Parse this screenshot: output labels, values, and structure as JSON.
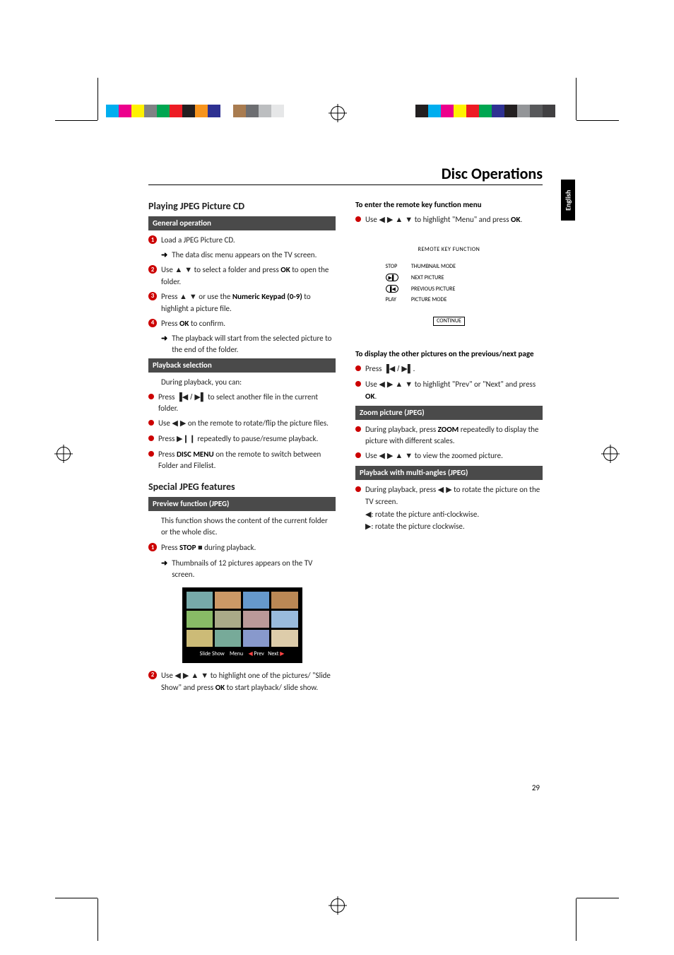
{
  "page_title": "Disc Operations",
  "side_tab": "English",
  "page_number": "29",
  "colorbar_left": [
    "#00aeef",
    "#ec008c",
    "#fff200",
    "#808285",
    "#00a651",
    "#ed1c24",
    "#231f20",
    "#f7941d",
    "#2e3192",
    "#ffffff",
    "#a97c50",
    "#6d6e71",
    "#bcbec0",
    "#e6e7e8"
  ],
  "colorbar_right": [
    "#231f20",
    "#00aeef",
    "#ec008c",
    "#fff200",
    "#ed1c24",
    "#00a651",
    "#2e3192",
    "#231f20",
    "#939598",
    "#58595b",
    "#414042",
    "#ffffff"
  ],
  "left": {
    "h_playing": "Playing JPEG Picture CD",
    "bar_general": "General operation",
    "s1": "Load a JPEG Picture CD.",
    "s1_sub": "The data disc menu appears on the TV screen.",
    "s2_a": "Use ",
    "s2_b": " to select a folder and press ",
    "s2_c": " to open the folder.",
    "s3_a": "Press ",
    "s3_b": " or use the ",
    "s3_c": "Numeric Keypad (0-9)",
    "s3_d": " to highlight a picture file.",
    "s4_a": "Press ",
    "s4_b": " to confirm.",
    "s4_sub": "The playback will start from the selected picture to the end of the folder.",
    "bar_playback": "Playback selection",
    "pb_intro": "During playback, you can:",
    "pb1_a": "Press  ",
    "pb1_b": " to select another file in the current folder.",
    "pb2_a": "Use ",
    "pb2_b": " on the remote to rotate/flip the picture files.",
    "pb3_a": "Press  ",
    "pb3_b": " repeatedly to pause/resume playback.",
    "pb4_a": "Press ",
    "pb4_b": "DISC MENU",
    "pb4_c": " on the remote to switch between Folder and Filelist.",
    "h_special": "Special JPEG features",
    "bar_preview": "Preview function (JPEG)",
    "prev_intro": "This function shows the content of the current folder or the whole disc.",
    "ps1_a": "Press ",
    "ps1_b": "STOP",
    "ps1_c": " during playback.",
    "ps1_sub": "Thumbnails of 12 pictures appears on the TV screen.",
    "ps2_a": "Use ",
    "ps2_b": " to highlight one of the pictures/ \"Slide Show\" and press ",
    "ps2_c": " to start playback/ slide show.",
    "thumb_caption_a": "Slide Show",
    "thumb_caption_b": "Menu",
    "thumb_caption_c": "Prev",
    "thumb_caption_d": "Next",
    "thumb_colors": [
      "#7aa",
      "#c96",
      "#69c",
      "#b85",
      "#8b6",
      "#aa8",
      "#b99",
      "#9bd",
      "#cb7",
      "#7a9",
      "#89c",
      "#dca"
    ]
  },
  "right": {
    "h_remote": "To enter the remote key function menu",
    "r1_a": "Use ",
    "r1_b": " to highlight \"Menu\" and press ",
    "r1_c": ".",
    "panel_title": "REMOTE KEY FUNCTION",
    "panel_rows": [
      [
        "STOP",
        "THUMBNAIL MODE"
      ],
      [
        "__next",
        "NEXT PICTURE"
      ],
      [
        "__prev",
        "PREVIOUS PICTURE"
      ],
      [
        "PLAY",
        "PICTURE MODE"
      ]
    ],
    "panel_continue": "CONTINUE",
    "h_display": "To display the other pictures on the previous/next page",
    "d1_a": "Press  ",
    "d1_b": ".",
    "d2_a": "Use ",
    "d2_b": " to highlight \"Prev\" or \"Next\" and press ",
    "d2_c": ".",
    "bar_zoom": "Zoom picture (JPEG)",
    "z1_a": "During playback, press ",
    "z1_b": "ZOOM",
    "z1_c": " repeatedly to display the picture with different scales.",
    "z2_a": "Use ",
    "z2_b": " to view the zoomed picture.",
    "bar_multi": "Playback with multi-angles (JPEG)",
    "m1_a": "During playback, press ",
    "m1_b": "  to rotate the picture on the TV screen.",
    "m2": ": rotate the picture anti-clockwise.",
    "m3": ": rotate the picture clockwise."
  },
  "ok": "OK",
  "glyph": {
    "up": "▲",
    "down": "▼",
    "left": "◀",
    "right": "▶",
    "prev": "▐◀",
    "next": "▶▌",
    "playpause": "▶❙❙",
    "stop": "■",
    "skip_pn": "▐◀ / ▶▌",
    "lr": "◀ ▶",
    "all4": "◀ ▶ ▲ ▼",
    "ud": "▲ ▼"
  }
}
